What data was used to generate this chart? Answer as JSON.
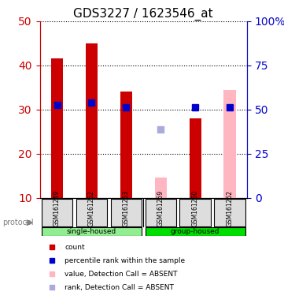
{
  "title": "GDS3227 / 1623546_at",
  "samples": [
    "GSM161249",
    "GSM161252",
    "GSM161253",
    "GSM161259",
    "GSM161260",
    "GSM161262"
  ],
  "groups": [
    "single-housed",
    "single-housed",
    "single-housed",
    "group-housed",
    "group-housed",
    "group-housed"
  ],
  "group_colors": {
    "single-housed": "#90EE90",
    "group-housed": "#00DD00"
  },
  "count_values": [
    41.5,
    45.0,
    34.0,
    null,
    28.0,
    null
  ],
  "count_color": "#CC0000",
  "absent_bar_values": [
    null,
    null,
    null,
    14.5,
    null,
    34.5
  ],
  "absent_bar_color": "#FFB6C1",
  "percentile_values": [
    31.0,
    31.5,
    30.5,
    null,
    30.5,
    30.5
  ],
  "percentile_color": "#0000CC",
  "absent_rank_values": [
    null,
    null,
    null,
    25.5,
    null,
    null
  ],
  "absent_rank_color": "#AAAADD",
  "ylim_left": [
    10,
    50
  ],
  "ylim_right": [
    0,
    100
  ],
  "yticks_left": [
    10,
    20,
    30,
    40,
    50
  ],
  "yticks_right": [
    0,
    25,
    50,
    75,
    100
  ],
  "ytick_labels_right": [
    "0",
    "25",
    "50",
    "75",
    "100%"
  ],
  "left_color": "#CC0000",
  "right_color": "#0000CC",
  "bar_width": 0.35,
  "marker_size": 6,
  "grid_color": "#000000",
  "bg_color": "#FFFFFF",
  "plot_bg_color": "#FFFFFF"
}
